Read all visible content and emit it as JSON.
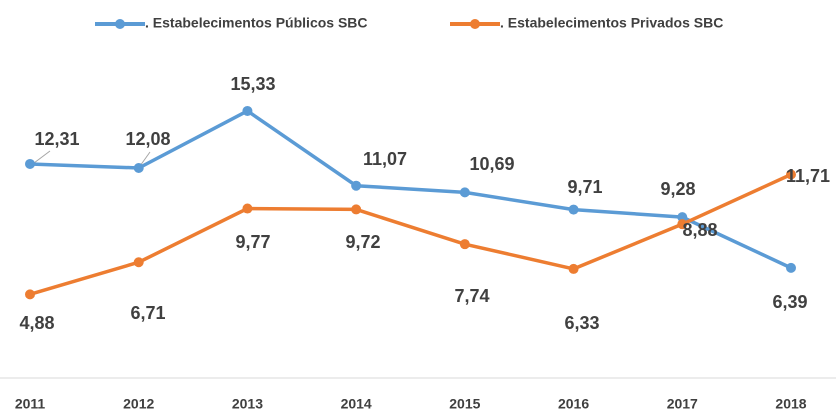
{
  "chart_data": {
    "type": "line",
    "categories": [
      "2011",
      "2012",
      "2013",
      "2014",
      "2015",
      "2016",
      "2017",
      "2018"
    ],
    "series": [
      {
        "name": ". Estabelecimentos Públicos SBC",
        "color": "#5b9bd5",
        "values": [
          12.31,
          12.08,
          15.33,
          11.07,
          10.69,
          9.71,
          9.28,
          6.39
        ],
        "value_labels": [
          "12,31",
          "12,08",
          "15,33",
          "11,07",
          "10,69",
          "9,71",
          "9,28",
          "6,39"
        ]
      },
      {
        "name": ". Estabelecimentos Privados SBC",
        "color": "#ed7d31",
        "values": [
          4.88,
          6.71,
          9.77,
          9.72,
          7.74,
          6.33,
          8.88,
          11.71
        ],
        "value_labels": [
          "4,88",
          "6,71",
          "9,77",
          "9,72",
          "7,74",
          "6,33",
          "8,88",
          "11,71"
        ]
      }
    ],
    "ylim": [
      0,
      20
    ],
    "legend": "top"
  }
}
